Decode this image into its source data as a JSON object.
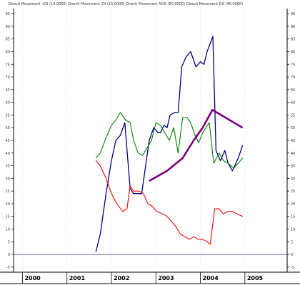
{
  "chart_data": {
    "type": "line",
    "title": "Directi Movement +DI (14.0000) Directi Movement -DI (15.0000) Directi Movement ADX (50.0000) Directi Movement DX (40.0000)",
    "xlabel": "",
    "ylabel": "",
    "x_range": [
      1999.8,
      2005.95
    ],
    "ylim": [
      -7,
      97
    ],
    "y_ticks": [
      -5,
      0,
      5,
      10,
      15,
      20,
      25,
      30,
      35,
      40,
      45,
      50,
      55,
      60,
      65,
      70,
      75,
      80,
      85,
      90,
      95
    ],
    "x_ticks": [
      2000,
      2001,
      2002,
      2003,
      2004,
      2005
    ],
    "grid": false,
    "reference_line": {
      "y": 0,
      "color": "#6a6ad0"
    },
    "series": [
      {
        "color": "#00008b",
        "width": 1.3,
        "points": [
          [
            2001.65,
            1
          ],
          [
            2001.75,
            8
          ],
          [
            2001.88,
            24
          ],
          [
            2002.0,
            37
          ],
          [
            2002.1,
            45
          ],
          [
            2002.2,
            47
          ],
          [
            2002.3,
            52
          ],
          [
            2002.42,
            26
          ],
          [
            2002.5,
            24
          ],
          [
            2002.58,
            24
          ],
          [
            2002.68,
            24
          ],
          [
            2002.85,
            45
          ],
          [
            2002.95,
            50
          ],
          [
            2003.05,
            48
          ],
          [
            2003.1,
            48
          ],
          [
            2003.18,
            51
          ],
          [
            2003.25,
            50
          ],
          [
            2003.32,
            55
          ],
          [
            2003.42,
            56
          ],
          [
            2003.5,
            56
          ],
          [
            2003.58,
            74
          ],
          [
            2003.68,
            78
          ],
          [
            2003.78,
            80
          ],
          [
            2003.9,
            74
          ],
          [
            2004.0,
            76
          ],
          [
            2004.08,
            75
          ],
          [
            2004.15,
            80
          ],
          [
            2004.28,
            86
          ],
          [
            2004.35,
            41
          ],
          [
            2004.45,
            37
          ],
          [
            2004.55,
            41
          ],
          [
            2004.62,
            36
          ],
          [
            2004.72,
            33
          ],
          [
            2004.85,
            38
          ],
          [
            2004.95,
            43
          ]
        ]
      },
      {
        "color": "#008000",
        "width": 1.1,
        "points": [
          [
            2001.65,
            38
          ],
          [
            2001.75,
            40
          ],
          [
            2001.88,
            46
          ],
          [
            2002.0,
            51
          ],
          [
            2002.1,
            53
          ],
          [
            2002.2,
            56
          ],
          [
            2002.32,
            53
          ],
          [
            2002.42,
            52
          ],
          [
            2002.5,
            45
          ],
          [
            2002.6,
            40
          ],
          [
            2002.7,
            39
          ],
          [
            2002.8,
            42
          ],
          [
            2002.9,
            45
          ],
          [
            2003.0,
            52
          ],
          [
            2003.1,
            51
          ],
          [
            2003.2,
            48
          ],
          [
            2003.3,
            45
          ],
          [
            2003.4,
            50
          ],
          [
            2003.5,
            40
          ],
          [
            2003.6,
            54
          ],
          [
            2003.7,
            54
          ],
          [
            2003.78,
            52
          ],
          [
            2003.88,
            47
          ],
          [
            2003.96,
            44
          ],
          [
            2004.05,
            48
          ],
          [
            2004.2,
            52
          ],
          [
            2004.3,
            36
          ],
          [
            2004.42,
            40
          ],
          [
            2004.52,
            37
          ],
          [
            2004.62,
            36
          ],
          [
            2004.75,
            34
          ],
          [
            2004.95,
            38
          ]
        ]
      },
      {
        "color": "#ff0000",
        "width": 1.1,
        "points": [
          [
            2001.65,
            37
          ],
          [
            2001.75,
            35
          ],
          [
            2001.88,
            30
          ],
          [
            2002.0,
            24
          ],
          [
            2002.12,
            20
          ],
          [
            2002.25,
            17
          ],
          [
            2002.35,
            18
          ],
          [
            2002.42,
            27
          ],
          [
            2002.5,
            25
          ],
          [
            2002.62,
            25
          ],
          [
            2002.72,
            24
          ],
          [
            2002.82,
            20
          ],
          [
            2002.92,
            19
          ],
          [
            2003.02,
            17
          ],
          [
            2003.15,
            16
          ],
          [
            2003.25,
            15
          ],
          [
            2003.35,
            13
          ],
          [
            2003.45,
            11
          ],
          [
            2003.55,
            8
          ],
          [
            2003.65,
            7
          ],
          [
            2003.75,
            6
          ],
          [
            2003.85,
            7
          ],
          [
            2003.95,
            6
          ],
          [
            2004.05,
            6
          ],
          [
            2004.15,
            5
          ],
          [
            2004.22,
            4
          ],
          [
            2004.32,
            18
          ],
          [
            2004.42,
            18
          ],
          [
            2004.52,
            16
          ],
          [
            2004.62,
            17
          ],
          [
            2004.72,
            17
          ],
          [
            2004.82,
            16
          ],
          [
            2004.95,
            15
          ]
        ]
      },
      {
        "color": "#7b007b",
        "width": 2.6,
        "points": [
          [
            2002.85,
            29
          ],
          [
            2003.25,
            33
          ],
          [
            2003.6,
            38
          ],
          [
            2003.85,
            45
          ],
          [
            2004.05,
            50
          ],
          [
            2004.27,
            57
          ],
          [
            2004.95,
            50
          ]
        ]
      }
    ]
  }
}
